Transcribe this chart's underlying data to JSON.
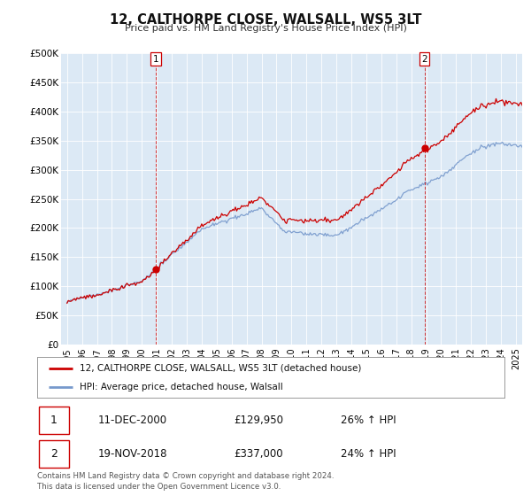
{
  "title": "12, CALTHORPE CLOSE, WALSALL, WS5 3LT",
  "subtitle": "Price paid vs. HM Land Registry's House Price Index (HPI)",
  "legend_label_red": "12, CALTHORPE CLOSE, WALSALL, WS5 3LT (detached house)",
  "legend_label_blue": "HPI: Average price, detached house, Walsall",
  "annotation1_date": "11-DEC-2000",
  "annotation1_price": "£129,950",
  "annotation1_hpi": "26% ↑ HPI",
  "annotation2_date": "19-NOV-2018",
  "annotation2_price": "£337,000",
  "annotation2_hpi": "24% ↑ HPI",
  "footer": "Contains HM Land Registry data © Crown copyright and database right 2024.\nThis data is licensed under the Open Government Licence v3.0.",
  "red_color": "#cc0000",
  "blue_color": "#7799cc",
  "chart_bg_color": "#dce9f5",
  "fig_bg_color": "#ffffff",
  "grid_color": "#ffffff",
  "ylim": [
    0,
    500000
  ],
  "yticks": [
    0,
    50000,
    100000,
    150000,
    200000,
    250000,
    300000,
    350000,
    400000,
    450000,
    500000
  ],
  "ytick_labels": [
    "£0",
    "£50K",
    "£100K",
    "£150K",
    "£200K",
    "£250K",
    "£300K",
    "£350K",
    "£400K",
    "£450K",
    "£500K"
  ],
  "sale1_x": 2000.94,
  "sale1_y": 129950,
  "sale2_x": 2018.88,
  "sale2_y": 337000,
  "vline1_x": 2000.94,
  "vline2_x": 2018.88,
  "xlim_left": 1994.6,
  "xlim_right": 2025.4
}
